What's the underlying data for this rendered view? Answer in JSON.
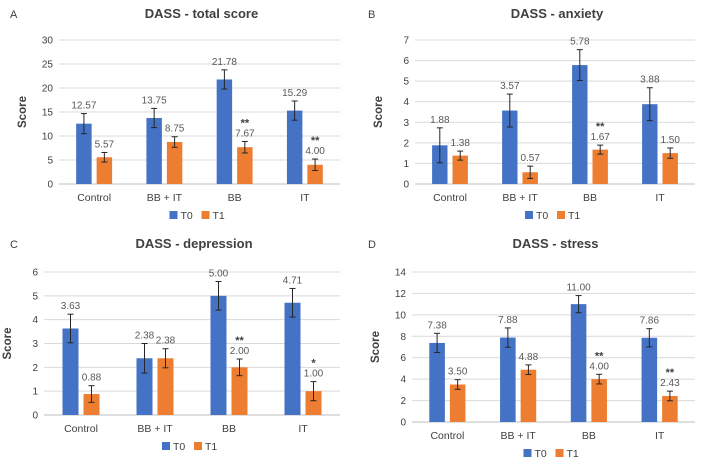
{
  "colors": {
    "T0": "#4472C4",
    "T1": "#ED7D31",
    "grid": "#D9D9D9",
    "axis": "#BFBFBF",
    "err": "#262626"
  },
  "chart_data": [
    {
      "letter": "A",
      "type": "bar",
      "title": "DASS - total score",
      "ylabel": "Score",
      "ylim": [
        0,
        30
      ],
      "ticks": [
        0,
        5,
        10,
        15,
        20,
        25,
        30
      ],
      "categories": [
        "Control",
        "BB + IT",
        "BB",
        "IT"
      ],
      "series": [
        {
          "name": "T0",
          "values": [
            12.57,
            13.75,
            21.78,
            15.29
          ],
          "labels": [
            "12.57",
            "13.75",
            "21.78",
            "15.29"
          ],
          "err": [
            2.1,
            2.0,
            2.0,
            2.0
          ],
          "sig": [
            "",
            "",
            "",
            ""
          ]
        },
        {
          "name": "T1",
          "values": [
            5.57,
            8.75,
            7.67,
            4.0
          ],
          "labels": [
            "5.57",
            "8.75",
            "7.67",
            "4.00"
          ],
          "err": [
            1.0,
            1.1,
            1.2,
            1.2
          ],
          "sig": [
            "",
            "",
            "**",
            "**"
          ]
        }
      ],
      "legend": "bottom",
      "grid": true
    },
    {
      "letter": "B",
      "type": "bar",
      "title": "DASS - anxiety",
      "ylabel": "Score",
      "ylim": [
        0,
        7
      ],
      "ticks": [
        0,
        1,
        2,
        3,
        4,
        5,
        6,
        7
      ],
      "categories": [
        "Control",
        "BB + IT",
        "BB",
        "IT"
      ],
      "series": [
        {
          "name": "T0",
          "values": [
            1.88,
            3.57,
            5.78,
            3.88
          ],
          "labels": [
            "1.88",
            "3.57",
            "5.78",
            "3.88"
          ],
          "err": [
            0.85,
            0.8,
            0.75,
            0.8
          ],
          "sig": [
            "",
            "",
            "",
            ""
          ]
        },
        {
          "name": "T1",
          "values": [
            1.38,
            0.57,
            1.67,
            1.5
          ],
          "labels": [
            "1.38",
            "0.57",
            "1.67",
            "1.50"
          ],
          "err": [
            0.22,
            0.3,
            0.22,
            0.25
          ],
          "sig": [
            "",
            "",
            "**",
            ""
          ]
        }
      ],
      "legend": "bottom",
      "grid": true
    },
    {
      "letter": "C",
      "type": "bar",
      "title": "DASS - depression",
      "ylabel": "Score",
      "ylim": [
        0,
        6
      ],
      "ticks": [
        0,
        1,
        2,
        3,
        4,
        5,
        6
      ],
      "categories": [
        "Control",
        "BB + IT",
        "BB",
        "IT"
      ],
      "series": [
        {
          "name": "T0",
          "values": [
            3.63,
            2.38,
            5.0,
            4.71
          ],
          "labels": [
            "3.63",
            "2.38",
            "5.00",
            "4.71"
          ],
          "err": [
            0.6,
            0.62,
            0.6,
            0.6
          ],
          "sig": [
            "",
            "",
            "",
            ""
          ]
        },
        {
          "name": "T1",
          "values": [
            0.88,
            2.38,
            2.0,
            1.0
          ],
          "labels": [
            "0.88",
            "2.38",
            "2.00",
            "1.00"
          ],
          "err": [
            0.35,
            0.4,
            0.35,
            0.4
          ],
          "sig": [
            "",
            "",
            "**",
            "*"
          ]
        }
      ],
      "legend": "bottom",
      "grid": true
    },
    {
      "letter": "D",
      "type": "bar",
      "title": "DASS - stress",
      "ylabel": "Score",
      "ylim": [
        0,
        14
      ],
      "ticks": [
        0,
        2,
        4,
        6,
        8,
        10,
        12,
        14
      ],
      "categories": [
        "Control",
        "BB + IT",
        "BB",
        "IT"
      ],
      "series": [
        {
          "name": "T0",
          "values": [
            7.38,
            7.88,
            11.0,
            7.86
          ],
          "labels": [
            "7.38",
            "7.88",
            "11.00",
            "7.86"
          ],
          "err": [
            0.9,
            0.9,
            0.8,
            0.85
          ],
          "sig": [
            "",
            "",
            "",
            ""
          ]
        },
        {
          "name": "T1",
          "values": [
            3.5,
            4.88,
            4.0,
            2.43
          ],
          "labels": [
            "3.50",
            "4.88",
            "4.00",
            "2.43"
          ],
          "err": [
            0.45,
            0.45,
            0.45,
            0.45
          ],
          "sig": [
            "",
            "",
            "**",
            "**"
          ]
        }
      ],
      "legend": "bottom",
      "grid": true
    }
  ]
}
